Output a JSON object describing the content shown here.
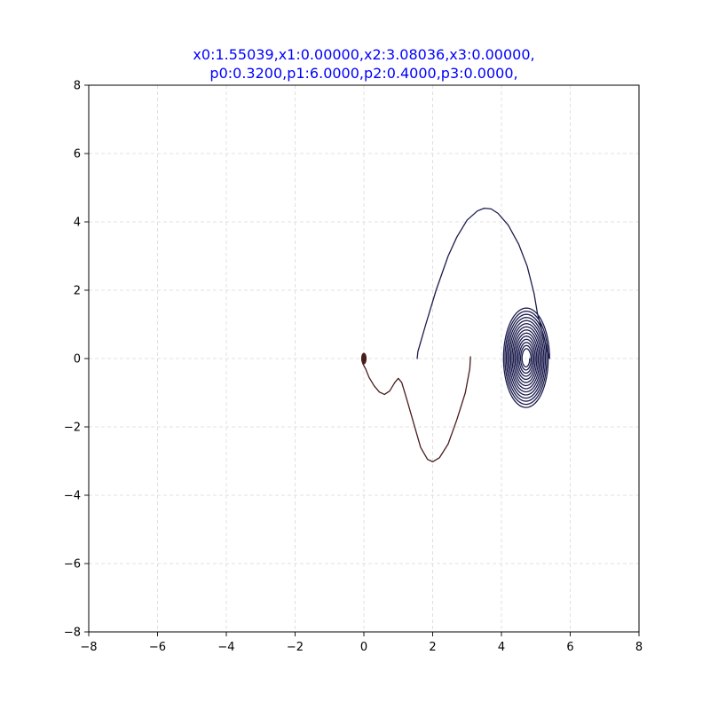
{
  "chart_data": {
    "type": "line",
    "title_lines": [
      "x0:1.55039,x1:0.00000,x2:3.08036,x3:0.00000,",
      "p0:0.3200,p1:6.0000,p2:0.4000,p3:0.0000,"
    ],
    "xlabel": "",
    "ylabel": "",
    "xlim": [
      -8,
      8
    ],
    "ylim": [
      -8,
      8
    ],
    "xticks": [
      -8,
      -6,
      -4,
      -2,
      0,
      2,
      4,
      6,
      8
    ],
    "yticks": [
      -8,
      -6,
      -4,
      -2,
      0,
      2,
      4,
      6,
      8
    ],
    "tick_labels": [
      "−8",
      "−6",
      "−4",
      "−2",
      "0",
      "2",
      "4",
      "6",
      "8"
    ],
    "grid": true,
    "series": [
      {
        "color": "#1b1b4d",
        "points": [
          [
            1.55,
            0.0
          ],
          [
            1.57,
            0.2
          ],
          [
            1.8,
            1.0
          ],
          [
            2.1,
            2.0
          ],
          [
            2.45,
            3.0
          ],
          [
            2.7,
            3.55
          ],
          [
            3.0,
            4.05
          ],
          [
            3.3,
            4.32
          ],
          [
            3.5,
            4.4
          ],
          [
            3.7,
            4.38
          ],
          [
            3.9,
            4.25
          ],
          [
            4.2,
            3.9
          ],
          [
            4.5,
            3.35
          ],
          [
            4.75,
            2.7
          ],
          [
            4.95,
            1.9
          ],
          [
            5.05,
            1.3
          ]
        ],
        "spiral": {
          "center": [
            4.72,
            0.0
          ],
          "outer_radius_x": 0.68,
          "outer_radius_y": 1.5,
          "inner_radius_x": 0.1,
          "inner_radius_y": 0.22,
          "turns": 14
        }
      },
      {
        "color": "#4a1c1c",
        "points": [
          [
            3.1,
            0.05
          ],
          [
            3.08,
            -0.3
          ],
          [
            2.95,
            -1.0
          ],
          [
            2.7,
            -1.8
          ],
          [
            2.45,
            -2.5
          ],
          [
            2.2,
            -2.9
          ],
          [
            2.0,
            -3.02
          ],
          [
            1.85,
            -2.95
          ],
          [
            1.65,
            -2.6
          ],
          [
            1.45,
            -1.9
          ],
          [
            1.25,
            -1.2
          ],
          [
            1.1,
            -0.7
          ],
          [
            1.0,
            -0.58
          ],
          [
            0.9,
            -0.7
          ],
          [
            0.75,
            -0.95
          ],
          [
            0.6,
            -1.05
          ],
          [
            0.45,
            -0.98
          ],
          [
            0.3,
            -0.8
          ],
          [
            0.15,
            -0.55
          ],
          [
            0.05,
            -0.3
          ],
          [
            -0.03,
            -0.15
          ]
        ],
        "blob": {
          "center": [
            0.0,
            0.0
          ],
          "radius_x": 0.08,
          "radius_y": 0.17
        }
      }
    ]
  }
}
